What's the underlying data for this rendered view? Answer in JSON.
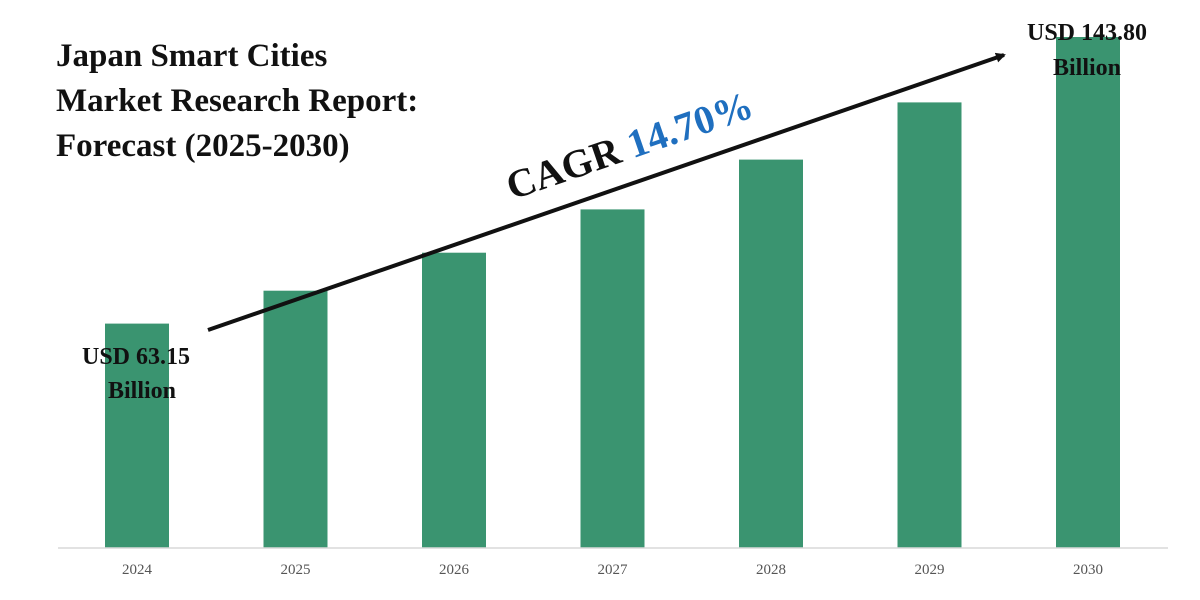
{
  "title_lines": [
    "Japan Smart Cities",
    "Market Research Report:",
    "Forecast (2025-2030)"
  ],
  "cagr": {
    "prefix": "CAGR",
    "value": "14.70%",
    "value_color": "#1f6fbf"
  },
  "colors": {
    "bar": "#3a9470",
    "axis": "#d9d9d9",
    "arrow": "#111111"
  },
  "start_label": [
    "USD 63.15",
    "Billion"
  ],
  "end_label": [
    "USD 143.80",
    "Billion"
  ],
  "chart_data": {
    "type": "bar",
    "categories": [
      "2024",
      "2025",
      "2026",
      "2027",
      "2028",
      "2029",
      "2030"
    ],
    "values": [
      63.15,
      72.4,
      83.1,
      95.3,
      109.3,
      125.4,
      143.8
    ],
    "ylim": [
      0,
      150
    ],
    "xlabel": "",
    "ylabel": "",
    "grid": false,
    "legend": "none"
  }
}
